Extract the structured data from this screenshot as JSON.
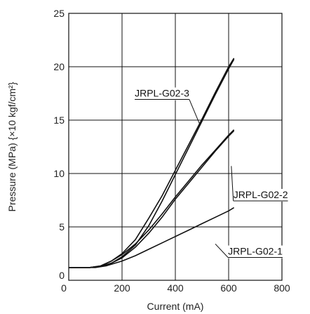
{
  "chart_data": {
    "type": "line",
    "xlabel": "Current (mA)",
    "ylabel": "Pressure (MPa) {×10 kgf/cm²}",
    "xlim": [
      0,
      800
    ],
    "ylim": [
      0,
      25
    ],
    "x_ticks": [
      "0",
      "200",
      "400",
      "600",
      "800"
    ],
    "y_ticks": [
      "0",
      "5",
      "10",
      "15",
      "20",
      "25"
    ],
    "grid": true,
    "series": [
      {
        "name": "JRPL-G02-3",
        "curves": [
          [
            [
              0,
              1.2
            ],
            [
              80,
              1.2
            ],
            [
              120,
              1.35
            ],
            [
              160,
              1.8
            ],
            [
              200,
              2.5
            ],
            [
              250,
              3.8
            ],
            [
              300,
              5.8
            ],
            [
              350,
              7.9
            ],
            [
              400,
              10.3
            ],
            [
              450,
              12.7
            ],
            [
              500,
              15.1
            ],
            [
              550,
              17.6
            ],
            [
              600,
              20.0
            ],
            [
              620,
              20.8
            ]
          ],
          [
            [
              0,
              1.2
            ],
            [
              80,
              1.2
            ],
            [
              120,
              1.3
            ],
            [
              160,
              1.6
            ],
            [
              200,
              2.2
            ],
            [
              250,
              3.3
            ],
            [
              300,
              5.1
            ],
            [
              350,
              7.4
            ],
            [
              400,
              9.9
            ],
            [
              450,
              12.4
            ],
            [
              500,
              14.9
            ],
            [
              550,
              17.4
            ],
            [
              600,
              19.8
            ],
            [
              620,
              20.7
            ]
          ]
        ]
      },
      {
        "name": "JRPL-G02-2",
        "curves": [
          [
            [
              0,
              1.2
            ],
            [
              80,
              1.2
            ],
            [
              120,
              1.35
            ],
            [
              160,
              1.8
            ],
            [
              200,
              2.4
            ],
            [
              250,
              3.4
            ],
            [
              300,
              4.7
            ],
            [
              350,
              6.2
            ],
            [
              400,
              7.8
            ],
            [
              450,
              9.3
            ],
            [
              500,
              10.8
            ],
            [
              550,
              12.2
            ],
            [
              600,
              13.6
            ],
            [
              620,
              14.1
            ]
          ],
          [
            [
              0,
              1.2
            ],
            [
              80,
              1.2
            ],
            [
              120,
              1.3
            ],
            [
              160,
              1.6
            ],
            [
              200,
              2.1
            ],
            [
              250,
              3.1
            ],
            [
              300,
              4.4
            ],
            [
              350,
              5.9
            ],
            [
              400,
              7.6
            ],
            [
              450,
              9.1
            ],
            [
              500,
              10.6
            ],
            [
              550,
              12.1
            ],
            [
              600,
              13.5
            ],
            [
              620,
              14.0
            ]
          ]
        ]
      },
      {
        "name": "JRPL-G02-1",
        "curves": [
          [
            [
              0,
              1.2
            ],
            [
              100,
              1.2
            ],
            [
              140,
              1.35
            ],
            [
              200,
              1.8
            ],
            [
              250,
              2.3
            ],
            [
              300,
              2.9
            ],
            [
              350,
              3.5
            ],
            [
              400,
              4.1
            ],
            [
              450,
              4.7
            ],
            [
              500,
              5.3
            ],
            [
              550,
              5.9
            ],
            [
              600,
              6.5
            ],
            [
              620,
              6.8
            ]
          ]
        ]
      }
    ],
    "annotations": [
      {
        "text": "JRPL-G02-3",
        "at": [
          350,
          17.2
        ],
        "points_to": [
          490,
          14.7
        ]
      },
      {
        "text": "JRPL-G02-2",
        "at": [
          720,
          7.7
        ],
        "points_to": [
          610,
          10.7
        ]
      },
      {
        "text": "JRPL-G02-1",
        "at": [
          700,
          2.4
        ],
        "points_to": [
          550,
          3.4
        ]
      }
    ]
  }
}
